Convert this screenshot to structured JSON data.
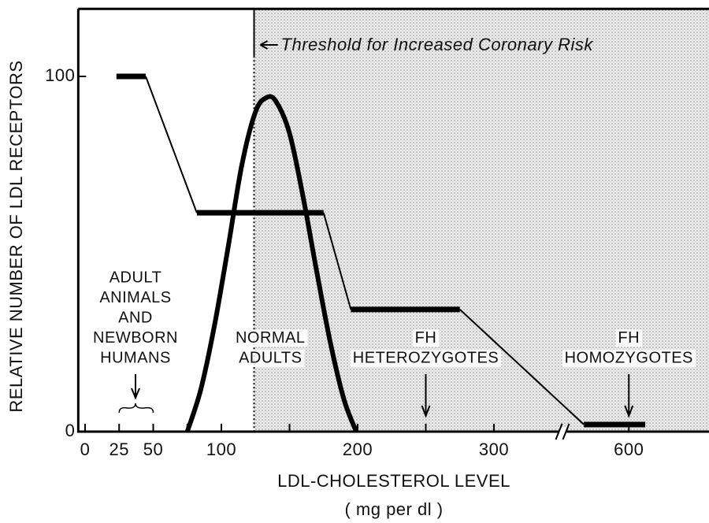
{
  "chart_data": {
    "type": "line",
    "ylabel": "RELATIVE NUMBER OF LDL RECEPTORS",
    "xlabel": "LDL-CHOLESTEROL LEVEL",
    "xunit": "( mg per dl )",
    "xlim": [
      -5,
      659
    ],
    "ylim": [
      0,
      119
    ],
    "xticks": [
      0,
      25,
      50,
      100,
      200,
      300,
      600
    ],
    "xminorticks": [
      75,
      150,
      250
    ],
    "yticks": [
      0,
      100
    ],
    "xbreak": [
      350,
      551
    ],
    "threshold": {
      "x": 124,
      "label": "Threshold for Increased Coronary Risk"
    },
    "series": [
      {
        "x": [
          23,
          44.5,
          82,
          175,
          195,
          275,
          567,
          612
        ],
        "values": [
          100,
          100,
          61.6,
          61.6,
          34.4,
          34.4,
          2,
          2
        ],
        "color": "#000"
      },
      {
        "x": [
          75,
          85,
          95,
          105,
          115,
          125,
          133,
          140,
          150,
          160,
          170,
          180,
          190,
          199
        ],
        "values": [
          0,
          12,
          30,
          52,
          75,
          90,
          94,
          93,
          84,
          66,
          45,
          25,
          9,
          0
        ],
        "color": "#000"
      }
    ],
    "annotations": [
      {
        "lines": [
          "ADULT",
          "ANIMALS",
          "AND",
          "NEWBORN",
          "HUMANS"
        ],
        "x": 37,
        "brace": [
          25,
          50
        ]
      },
      {
        "lines": [
          "NORMAL",
          "ADULTS"
        ],
        "x": 136
      },
      {
        "lines": [
          "FH",
          "HETEROZYGOTES"
        ],
        "x": 250,
        "arrow": true
      },
      {
        "lines": [
          "FH",
          "HOMOZYGOTES"
        ],
        "x": 600,
        "arrow": true
      }
    ]
  }
}
